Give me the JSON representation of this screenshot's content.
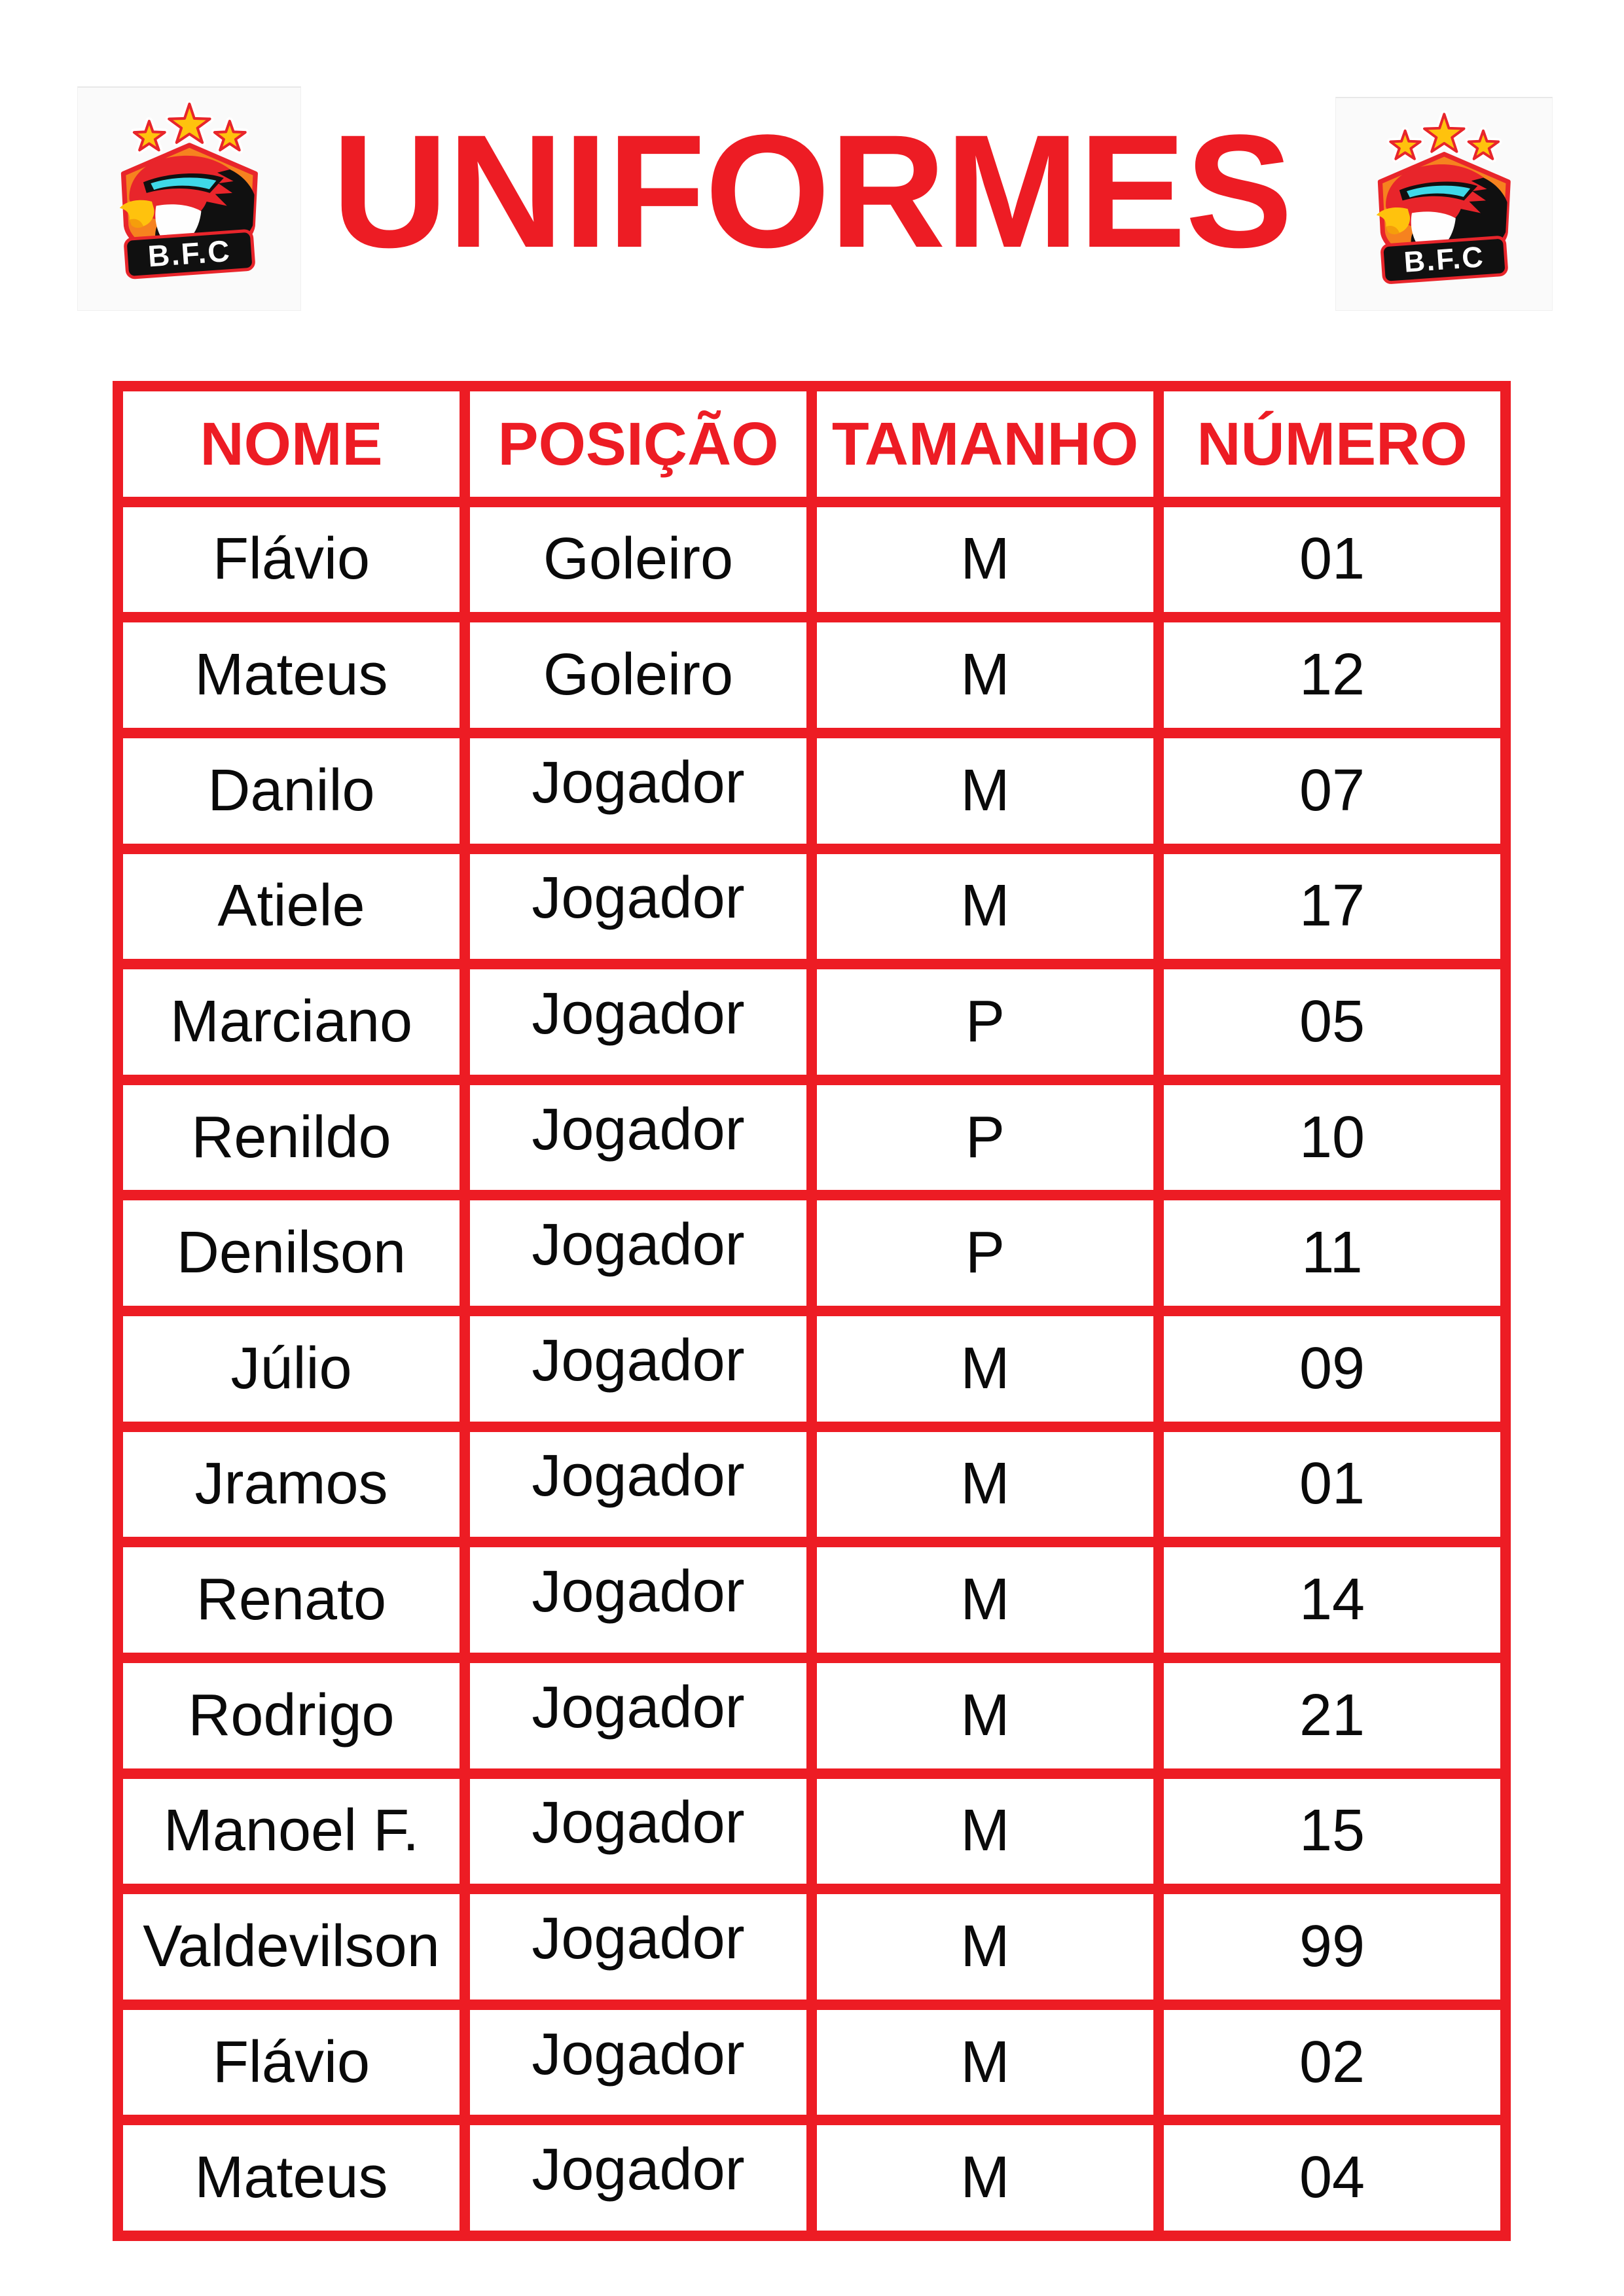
{
  "page": {
    "title": "UNIFORMES",
    "colors": {
      "accent_red": "#ed1c24",
      "text_black": "#0a0a0a",
      "star_gold": "#ffc20d",
      "shield_orange": "#f6821f",
      "eye_cyan": "#3fd8e8"
    }
  },
  "logo": {
    "text": "B.F.C"
  },
  "table": {
    "headers": [
      "NOME",
      "POSIÇÃO",
      "TAMANHO",
      "NÚMERO"
    ],
    "column_keys": [
      "nome",
      "posicao",
      "tamanho",
      "numero"
    ],
    "rows": [
      [
        "Flávio",
        "Goleiro",
        "M",
        "01"
      ],
      [
        "Mateus",
        "Goleiro",
        "M",
        "12"
      ],
      [
        "Danilo",
        "Jogador",
        "M",
        "07"
      ],
      [
        "Atiele",
        "Jogador",
        "M",
        "17"
      ],
      [
        "Marciano",
        "Jogador",
        "P",
        "05"
      ],
      [
        "Renildo",
        "Jogador",
        "P",
        "10"
      ],
      [
        "Denilson",
        "Jogador",
        "P",
        "11"
      ],
      [
        "Júlio",
        "Jogador",
        "M",
        "09"
      ],
      [
        "Jramos",
        "Jogador",
        "M",
        "01"
      ],
      [
        "Renato",
        "Jogador",
        "M",
        "14"
      ],
      [
        "Rodrigo",
        "Jogador",
        "M",
        "21"
      ],
      [
        "Manoel F.",
        "Jogador",
        "M",
        "15"
      ],
      [
        "Valdevilson",
        "Jogador",
        "M",
        "99"
      ],
      [
        "Flávio",
        "Jogador",
        "M",
        "02"
      ],
      [
        "Mateus",
        "Jogador",
        "M",
        "04"
      ]
    ]
  }
}
